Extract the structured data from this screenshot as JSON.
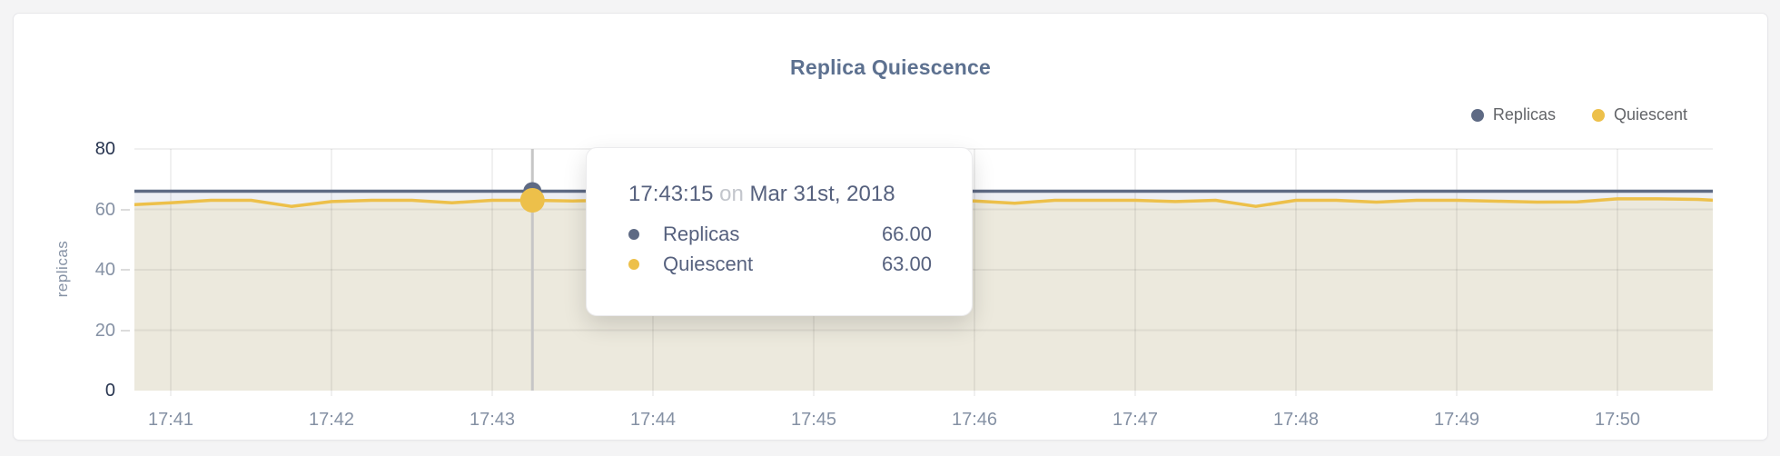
{
  "colors": {
    "page_bg": "#f4f4f5",
    "card_bg": "#ffffff",
    "title": "#5d7190",
    "legend_text": "#636569",
    "axis_dark": "#27344f",
    "axis_gray": "#8591a4",
    "grid": "rgba(0,0,0,0.06)",
    "crosshair": "#c6c6c6",
    "tooltip_text": "#56617e",
    "tooltip_muted": "#c3c6cc"
  },
  "legend": {
    "items": [
      {
        "label": "Replicas",
        "color": "#5e6a84"
      },
      {
        "label": "Quiescent",
        "color": "#edc04a"
      }
    ]
  },
  "tooltip": {
    "time": "17:43:15",
    "connector": "on",
    "date": "Mar 31st, 2018",
    "rows": [
      {
        "label": "Replicas",
        "value": "66.00",
        "color": "#5e6a84"
      },
      {
        "label": "Quiescent",
        "value": "63.00",
        "color": "#edc04a"
      }
    ]
  },
  "chart_data": {
    "type": "line",
    "title": "Replica Quiescence",
    "xlabel": "",
    "ylabel": "replicas",
    "ylim": [
      0,
      80
    ],
    "y_ticks": [
      0,
      20,
      40,
      60,
      80
    ],
    "x_ticks": [
      "17:41",
      "17:42",
      "17:43",
      "17:44",
      "17:45",
      "17:46",
      "17:47",
      "17:48",
      "17:49",
      "17:50"
    ],
    "grid": true,
    "legend_position": "top-right",
    "hover_point": {
      "time": "17:43:15",
      "date": "Mar 31st, 2018",
      "replicas": 66.0,
      "quiescent": 63.0
    },
    "x": [
      "17:40:45",
      "17:41:00",
      "17:41:15",
      "17:41:30",
      "17:41:45",
      "17:42:00",
      "17:42:15",
      "17:42:30",
      "17:42:45",
      "17:43:00",
      "17:43:15",
      "17:43:30",
      "17:43:45",
      "17:44:00",
      "17:44:15",
      "17:44:30",
      "17:44:45",
      "17:45:00",
      "17:45:15",
      "17:45:30",
      "17:45:45",
      "17:46:00",
      "17:46:15",
      "17:46:30",
      "17:46:45",
      "17:47:00",
      "17:47:15",
      "17:47:30",
      "17:47:45",
      "17:48:00",
      "17:48:15",
      "17:48:30",
      "17:48:45",
      "17:49:00",
      "17:49:15",
      "17:49:30",
      "17:49:45",
      "17:50:00",
      "17:50:15",
      "17:50:30",
      "17:50:45"
    ],
    "series": [
      {
        "name": "Replicas",
        "color": "#5e6a84",
        "fill": "#edeff4",
        "values": [
          66,
          66,
          66,
          66,
          66,
          66,
          66,
          66,
          66,
          66,
          66,
          66,
          66,
          66,
          66,
          66,
          66,
          66,
          66,
          66,
          66,
          66,
          66,
          66,
          66,
          66,
          66,
          66,
          66,
          66,
          66,
          66,
          66,
          66,
          66,
          66,
          66,
          66,
          66,
          66,
          66
        ]
      },
      {
        "name": "Quiescent",
        "color": "#edc04a",
        "fill": "#ece9dd",
        "values": [
          61.5,
          62.2,
          63,
          63,
          61,
          62.6,
          63,
          63,
          62.2,
          63,
          63,
          62.8,
          63,
          62.5,
          63,
          63,
          62.7,
          63,
          63,
          62.5,
          63,
          62.8,
          62,
          63,
          63,
          63,
          62.6,
          63,
          61,
          63,
          63,
          62.4,
          63,
          63,
          62.7,
          62.4,
          62.5,
          63.5,
          63.5,
          63.3,
          62.6
        ]
      }
    ]
  }
}
